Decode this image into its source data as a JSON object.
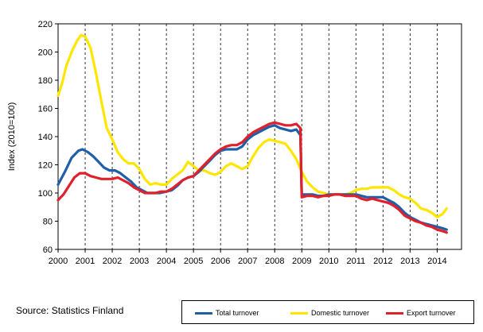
{
  "source_text": "Source: Statistics Finland",
  "chart_data": {
    "type": "line",
    "xlabel": "",
    "ylabel": "Index (2010=100)",
    "ylim": [
      60,
      220
    ],
    "xlim": [
      2000,
      2014.9
    ],
    "y_ticks": [
      60,
      80,
      100,
      120,
      140,
      160,
      180,
      200,
      220
    ],
    "x_ticks": [
      "2000",
      "2001",
      "2002",
      "2003",
      "2004",
      "2005",
      "2006",
      "2007",
      "2008",
      "2009",
      "2010",
      "2011",
      "2012",
      "2013",
      "2014"
    ],
    "grid": "vertical dashed at years",
    "legend_position": "bottom-right",
    "series": [
      {
        "name": "Total turnover",
        "color": "#1f5fa8",
        "points": [
          [
            2000.0,
            106
          ],
          [
            2000.25,
            115
          ],
          [
            2000.5,
            125
          ],
          [
            2000.75,
            130
          ],
          [
            2000.9,
            131
          ],
          [
            2001.1,
            129
          ],
          [
            2001.3,
            126
          ],
          [
            2001.5,
            122
          ],
          [
            2001.7,
            118
          ],
          [
            2001.9,
            116
          ],
          [
            2002.1,
            116
          ],
          [
            2002.3,
            114
          ],
          [
            2002.5,
            111
          ],
          [
            2002.7,
            108
          ],
          [
            2002.9,
            104
          ],
          [
            2003.1,
            102
          ],
          [
            2003.3,
            100
          ],
          [
            2003.5,
            100
          ],
          [
            2003.75,
            100
          ],
          [
            2004.0,
            101
          ],
          [
            2004.2,
            102
          ],
          [
            2004.4,
            105
          ],
          [
            2004.6,
            109
          ],
          [
            2004.8,
            111
          ],
          [
            2005.0,
            112
          ],
          [
            2005.2,
            115
          ],
          [
            2005.4,
            119
          ],
          [
            2005.6,
            123
          ],
          [
            2005.8,
            127
          ],
          [
            2006.0,
            130
          ],
          [
            2006.2,
            131
          ],
          [
            2006.4,
            131
          ],
          [
            2006.6,
            131
          ],
          [
            2006.8,
            133
          ],
          [
            2007.0,
            138
          ],
          [
            2007.2,
            141
          ],
          [
            2007.4,
            143
          ],
          [
            2007.6,
            145
          ],
          [
            2007.8,
            147
          ],
          [
            2008.0,
            148
          ],
          [
            2008.2,
            146
          ],
          [
            2008.4,
            145
          ],
          [
            2008.6,
            144
          ],
          [
            2008.8,
            145
          ],
          [
            2008.95,
            141
          ],
          [
            2009.0,
            99
          ],
          [
            2009.2,
            99
          ],
          [
            2009.4,
            99
          ],
          [
            2009.6,
            98
          ],
          [
            2009.8,
            98
          ],
          [
            2010.0,
            99
          ],
          [
            2010.2,
            99
          ],
          [
            2010.4,
            99
          ],
          [
            2010.6,
            99
          ],
          [
            2010.8,
            99
          ],
          [
            2011.0,
            99
          ],
          [
            2011.2,
            98
          ],
          [
            2011.4,
            97
          ],
          [
            2011.6,
            97
          ],
          [
            2011.8,
            97
          ],
          [
            2012.0,
            97
          ],
          [
            2012.2,
            95
          ],
          [
            2012.4,
            93
          ],
          [
            2012.6,
            90
          ],
          [
            2012.8,
            86
          ],
          [
            2013.0,
            83
          ],
          [
            2013.2,
            81
          ],
          [
            2013.4,
            79
          ],
          [
            2013.6,
            78
          ],
          [
            2013.8,
            77
          ],
          [
            2014.0,
            76
          ],
          [
            2014.2,
            75
          ],
          [
            2014.35,
            74
          ]
        ]
      },
      {
        "name": "Domestic turnover",
        "color": "#ffe600",
        "points": [
          [
            2000.0,
            169
          ],
          [
            2000.15,
            178
          ],
          [
            2000.3,
            190
          ],
          [
            2000.5,
            200
          ],
          [
            2000.7,
            208
          ],
          [
            2000.85,
            212
          ],
          [
            2001.0,
            211
          ],
          [
            2001.2,
            203
          ],
          [
            2001.4,
            185
          ],
          [
            2001.6,
            165
          ],
          [
            2001.8,
            146
          ],
          [
            2002.0,
            138
          ],
          [
            2002.2,
            129
          ],
          [
            2002.4,
            124
          ],
          [
            2002.6,
            121
          ],
          [
            2002.8,
            121
          ],
          [
            2003.0,
            117
          ],
          [
            2003.2,
            110
          ],
          [
            2003.4,
            106
          ],
          [
            2003.6,
            107
          ],
          [
            2003.8,
            106
          ],
          [
            2004.0,
            106
          ],
          [
            2004.2,
            110
          ],
          [
            2004.4,
            113
          ],
          [
            2004.6,
            116
          ],
          [
            2004.8,
            122
          ],
          [
            2005.0,
            119
          ],
          [
            2005.2,
            116
          ],
          [
            2005.4,
            116
          ],
          [
            2005.6,
            114
          ],
          [
            2005.8,
            113
          ],
          [
            2006.0,
            115
          ],
          [
            2006.2,
            119
          ],
          [
            2006.4,
            121
          ],
          [
            2006.6,
            119
          ],
          [
            2006.8,
            117
          ],
          [
            2007.0,
            119
          ],
          [
            2007.2,
            126
          ],
          [
            2007.4,
            132
          ],
          [
            2007.6,
            136
          ],
          [
            2007.8,
            138
          ],
          [
            2008.0,
            137
          ],
          [
            2008.2,
            136
          ],
          [
            2008.4,
            135
          ],
          [
            2008.6,
            130
          ],
          [
            2008.8,
            124
          ],
          [
            2009.0,
            115
          ],
          [
            2009.2,
            108
          ],
          [
            2009.4,
            104
          ],
          [
            2009.6,
            101
          ],
          [
            2009.8,
            100
          ],
          [
            2010.0,
            99
          ],
          [
            2010.2,
            99
          ],
          [
            2010.4,
            99
          ],
          [
            2010.6,
            99
          ],
          [
            2010.8,
            100
          ],
          [
            2011.0,
            102
          ],
          [
            2011.2,
            103
          ],
          [
            2011.4,
            103
          ],
          [
            2011.6,
            104
          ],
          [
            2011.8,
            104
          ],
          [
            2012.0,
            104
          ],
          [
            2012.2,
            104
          ],
          [
            2012.4,
            102
          ],
          [
            2012.6,
            99
          ],
          [
            2012.8,
            97
          ],
          [
            2013.0,
            96
          ],
          [
            2013.2,
            93
          ],
          [
            2013.4,
            89
          ],
          [
            2013.6,
            88
          ],
          [
            2013.8,
            86
          ],
          [
            2014.0,
            83
          ],
          [
            2014.2,
            85
          ],
          [
            2014.35,
            89
          ]
        ]
      },
      {
        "name": "Export turnover",
        "color": "#e0202a",
        "points": [
          [
            2000.0,
            95
          ],
          [
            2000.2,
            99
          ],
          [
            2000.4,
            105
          ],
          [
            2000.6,
            111
          ],
          [
            2000.8,
            114
          ],
          [
            2001.0,
            114
          ],
          [
            2001.2,
            112
          ],
          [
            2001.4,
            111
          ],
          [
            2001.6,
            110
          ],
          [
            2001.8,
            110
          ],
          [
            2002.0,
            110
          ],
          [
            2002.2,
            111
          ],
          [
            2002.4,
            109
          ],
          [
            2002.6,
            107
          ],
          [
            2002.8,
            104
          ],
          [
            2003.0,
            102
          ],
          [
            2003.2,
            100
          ],
          [
            2003.4,
            100
          ],
          [
            2003.6,
            100
          ],
          [
            2003.8,
            101
          ],
          [
            2004.0,
            101
          ],
          [
            2004.2,
            103
          ],
          [
            2004.4,
            106
          ],
          [
            2004.6,
            109
          ],
          [
            2004.8,
            111
          ],
          [
            2005.0,
            112
          ],
          [
            2005.2,
            116
          ],
          [
            2005.4,
            120
          ],
          [
            2005.6,
            124
          ],
          [
            2005.8,
            128
          ],
          [
            2006.0,
            131
          ],
          [
            2006.2,
            133
          ],
          [
            2006.4,
            134
          ],
          [
            2006.6,
            134
          ],
          [
            2006.8,
            136
          ],
          [
            2007.0,
            140
          ],
          [
            2007.2,
            143
          ],
          [
            2007.4,
            145
          ],
          [
            2007.6,
            147
          ],
          [
            2007.8,
            149
          ],
          [
            2008.0,
            150
          ],
          [
            2008.2,
            149
          ],
          [
            2008.4,
            148
          ],
          [
            2008.6,
            148
          ],
          [
            2008.8,
            149
          ],
          [
            2008.95,
            146
          ],
          [
            2009.0,
            97
          ],
          [
            2009.2,
            98
          ],
          [
            2009.4,
            98
          ],
          [
            2009.6,
            97
          ],
          [
            2009.8,
            98
          ],
          [
            2010.0,
            98
          ],
          [
            2010.2,
            99
          ],
          [
            2010.4,
            99
          ],
          [
            2010.6,
            98
          ],
          [
            2010.8,
            98
          ],
          [
            2011.0,
            98
          ],
          [
            2011.2,
            96
          ],
          [
            2011.4,
            95
          ],
          [
            2011.6,
            96
          ],
          [
            2011.8,
            95
          ],
          [
            2012.0,
            94
          ],
          [
            2012.2,
            93
          ],
          [
            2012.4,
            91
          ],
          [
            2012.6,
            88
          ],
          [
            2012.8,
            84
          ],
          [
            2013.0,
            82
          ],
          [
            2013.2,
            80
          ],
          [
            2013.4,
            79
          ],
          [
            2013.6,
            77
          ],
          [
            2013.8,
            76
          ],
          [
            2014.0,
            74
          ],
          [
            2014.2,
            73
          ],
          [
            2014.35,
            72
          ]
        ]
      }
    ]
  }
}
